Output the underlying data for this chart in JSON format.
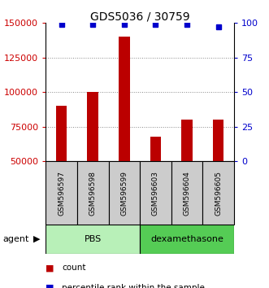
{
  "title": "GDS5036 / 30759",
  "samples": [
    "GSM596597",
    "GSM596598",
    "GSM596599",
    "GSM596603",
    "GSM596604",
    "GSM596605"
  ],
  "counts": [
    90000,
    100000,
    140000,
    68000,
    80000,
    80000
  ],
  "percentile_ranks": [
    99,
    99,
    99,
    99,
    99,
    97
  ],
  "groups": [
    {
      "label": "PBS",
      "n": 3,
      "color": "#b8f0b8"
    },
    {
      "label": "dexamethasone",
      "n": 3,
      "color": "#55cc55"
    }
  ],
  "ylim_left": [
    50000,
    150000
  ],
  "ylim_right": [
    0,
    100
  ],
  "yticks_left": [
    50000,
    75000,
    100000,
    125000,
    150000
  ],
  "yticks_right": [
    0,
    25,
    50,
    75,
    100
  ],
  "bar_color": "#bb0000",
  "dot_color": "#0000cc",
  "bar_width": 0.35,
  "agent_label": "agent",
  "legend_count_label": "count",
  "legend_pct_label": "percentile rank within the sample",
  "sample_box_color": "#cccccc",
  "grid_color": "#888888"
}
